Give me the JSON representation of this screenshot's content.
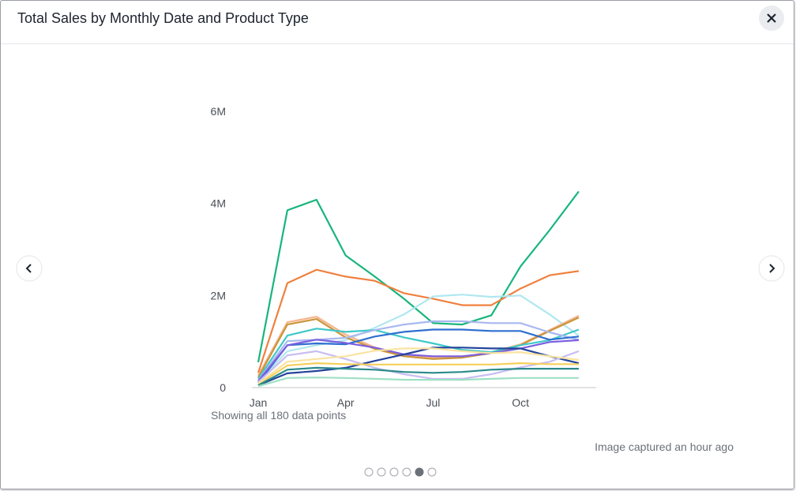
{
  "header": {
    "title": "Total Sales by Monthly Date and Product Type"
  },
  "chart_data": {
    "type": "line",
    "categories": [
      "Jan",
      null,
      null,
      "Apr",
      null,
      null,
      "Jul",
      null,
      null,
      "Oct",
      null,
      null
    ],
    "ylim": [
      0,
      6000000
    ],
    "yticks": [
      0,
      {
        "value": 2000000,
        "label": "2M"
      },
      {
        "value": 4000000,
        "label": "4M"
      },
      {
        "value": 6000000,
        "label": "6M"
      }
    ],
    "note": "Showing all 180 data points",
    "series": [
      {
        "color": "#17b57c",
        "values": [
          550000,
          3850000,
          4080000,
          2870000,
          2410000,
          1930000,
          1400000,
          1370000,
          1570000,
          2630000,
          3420000,
          4260000
        ]
      },
      {
        "color": "#f0803f",
        "values": [
          320000,
          2270000,
          2560000,
          2410000,
          2320000,
          2050000,
          1930000,
          1790000,
          1790000,
          2150000,
          2440000,
          2530000
        ]
      },
      {
        "color": "#b0e7f0",
        "values": [
          120000,
          790000,
          920000,
          1030000,
          1300000,
          1590000,
          1980000,
          2020000,
          1970000,
          2000000,
          1590000,
          1130000
        ]
      },
      {
        "color": "#f6b48f",
        "values": [
          260000,
          1420000,
          1540000,
          1150000,
          870000,
          720000,
          650000,
          670000,
          770000,
          940000,
          1250000,
          1560000
        ]
      },
      {
        "color": "#c9963a",
        "values": [
          220000,
          1370000,
          1490000,
          1090000,
          840000,
          680000,
          620000,
          650000,
          750000,
          920000,
          1230000,
          1520000
        ]
      },
      {
        "color": "#3fc8c8",
        "values": [
          190000,
          1130000,
          1280000,
          1210000,
          1250000,
          1090000,
          960000,
          820000,
          770000,
          920000,
          1030000,
          1260000
        ]
      },
      {
        "color": "#a9b8ef",
        "values": [
          150000,
          1010000,
          1040000,
          1080000,
          1250000,
          1370000,
          1440000,
          1440000,
          1400000,
          1400000,
          1200000,
          1040000
        ]
      },
      {
        "color": "#2f6fd0",
        "values": [
          100000,
          920000,
          960000,
          940000,
          1110000,
          1210000,
          1260000,
          1260000,
          1230000,
          1230000,
          1040000,
          1110000
        ]
      },
      {
        "color": "#7b5fe0",
        "values": [
          140000,
          920000,
          1040000,
          970000,
          870000,
          720000,
          680000,
          680000,
          750000,
          850000,
          990000,
          1030000
        ]
      },
      {
        "color": "#24449c",
        "values": [
          50000,
          310000,
          360000,
          430000,
          580000,
          720000,
          870000,
          870000,
          850000,
          850000,
          680000,
          530000
        ]
      },
      {
        "color": "#c8bdf2",
        "values": [
          120000,
          700000,
          790000,
          620000,
          430000,
          290000,
          190000,
          190000,
          290000,
          440000,
          560000,
          790000
        ]
      },
      {
        "color": "#f6cf5a",
        "values": [
          70000,
          480000,
          530000,
          510000,
          500000,
          500000,
          500000,
          500000,
          500000,
          530000,
          510000,
          510000
        ]
      },
      {
        "color": "#fae3a0",
        "values": [
          90000,
          560000,
          620000,
          680000,
          800000,
          850000,
          850000,
          790000,
          750000,
          770000,
          680000,
          600000
        ]
      },
      {
        "color": "#2a8a8a",
        "values": [
          50000,
          390000,
          430000,
          410000,
          390000,
          340000,
          320000,
          340000,
          390000,
          410000,
          410000,
          410000
        ]
      },
      {
        "color": "#9fe0c4",
        "values": [
          30000,
          210000,
          220000,
          210000,
          190000,
          170000,
          170000,
          170000,
          190000,
          210000,
          210000,
          210000
        ]
      }
    ]
  },
  "caption": "Image captured an hour ago"
}
